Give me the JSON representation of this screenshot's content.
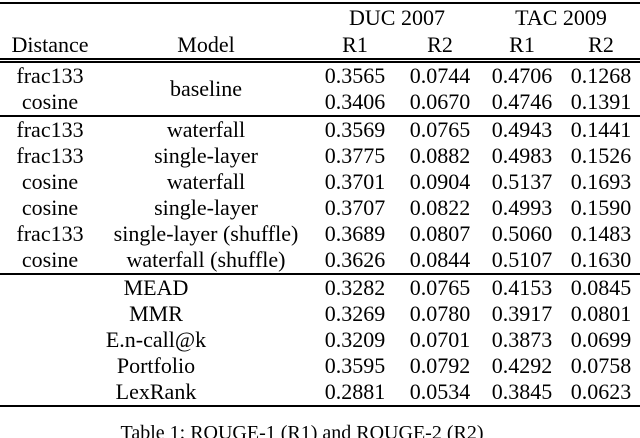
{
  "page": {
    "background_color": "#ffffff",
    "text_color": "#000000"
  },
  "table": {
    "column_groups": [
      {
        "label": "DUC 2007"
      },
      {
        "label": "TAC 2009"
      }
    ],
    "column_headers": {
      "distance": "Distance",
      "model": "Model",
      "metrics": [
        "R1",
        "R2",
        "R1",
        "R2"
      ]
    },
    "groups": [
      {
        "rows": [
          {
            "distance": "frac133",
            "model": "baseline",
            "model_rowspan": 2,
            "values": [
              "0.3565",
              "0.0744",
              "0.4706",
              "0.1268"
            ],
            "bold": []
          },
          {
            "distance": "cosine",
            "values": [
              "0.3406",
              "0.0670",
              "0.4746",
              "0.1391"
            ],
            "bold": []
          }
        ]
      },
      {
        "rows": [
          {
            "distance": "frac133",
            "model": "waterfall",
            "values": [
              "0.3569",
              "0.0765",
              "0.4943",
              "0.1441"
            ],
            "bold": []
          },
          {
            "distance": "frac133",
            "model": "single-layer",
            "values": [
              "0.3775",
              "0.0882",
              "0.4983",
              "0.1526"
            ],
            "bold": [
              0
            ]
          },
          {
            "distance": "cosine",
            "model": "waterfall",
            "values": [
              "0.3701",
              "0.0904",
              "0.5137",
              "0.1693"
            ],
            "bold": [
              1,
              2,
              3
            ]
          },
          {
            "distance": "cosine",
            "model": "single-layer",
            "values": [
              "0.3707",
              "0.0822",
              "0.4993",
              "0.1590"
            ],
            "bold": []
          },
          {
            "distance": "frac133",
            "model": "single-layer (shuffle)",
            "values": [
              "0.3689",
              "0.0807",
              "0.5060",
              "0.1483"
            ],
            "bold": []
          },
          {
            "distance": "cosine",
            "model": "waterfall (shuffle)",
            "values": [
              "0.3626",
              "0.0844",
              "0.5107",
              "0.1630"
            ],
            "bold": []
          }
        ]
      },
      {
        "rows": [
          {
            "model": "MEAD",
            "model_colspan": 2,
            "values": [
              "0.3282",
              "0.0765",
              "0.4153",
              "0.0845"
            ],
            "bold": []
          },
          {
            "model": "MMR",
            "model_colspan": 2,
            "values": [
              "0.3269",
              "0.0780",
              "0.3917",
              "0.0801"
            ],
            "bold": []
          },
          {
            "model": "E.n-call@k",
            "model_colspan": 2,
            "values": [
              "0.3209",
              "0.0701",
              "0.3873",
              "0.0699"
            ],
            "bold": []
          },
          {
            "model": "Portfolio",
            "model_colspan": 2,
            "values": [
              "0.3595",
              "0.0792",
              "0.4292",
              "0.0758"
            ],
            "bold": []
          },
          {
            "model": "LexRank",
            "model_colspan": 2,
            "values": [
              "0.2881",
              "0.0534",
              "0.3845",
              "0.0623"
            ],
            "bold": []
          }
        ]
      }
    ],
    "caption": "Table 1: ROUGE-1 (R1) and ROUGE-2 (R2)"
  }
}
